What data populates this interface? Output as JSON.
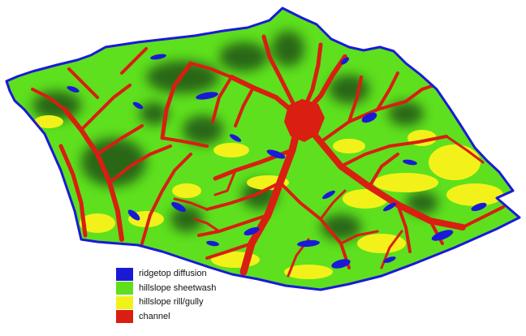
{
  "colors": {
    "ridgetop": "#1a1ad6",
    "sheetwash": "#5ee01e",
    "rill": "#f2f21a",
    "channel": "#d91e12",
    "shade": "#1e4a12"
  },
  "legend": [
    {
      "label": "ridgetop diffusion",
      "color": "#1a1ad6"
    },
    {
      "label": "hillslope sheetwash",
      "color": "#5ee01e"
    },
    {
      "label": "hillslope rill/gully",
      "color": "#f2f21a"
    },
    {
      "label": "channel",
      "color": "#d91e12"
    }
  ]
}
